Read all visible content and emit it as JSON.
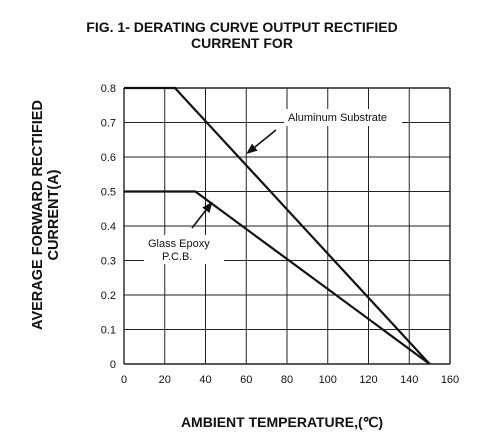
{
  "chart_data": {
    "type": "line",
    "title_line1": "FIG. 1- DERATING CURVE OUTPUT RECTIFIED",
    "title_line2": "CURRENT FOR",
    "ylabel_line1": "AVERAGE FORWARD RECTIFIED",
    "ylabel_line2": "CURRENT(A)",
    "xlabel": "AMBIENT TEMPERATURE,(℃)",
    "xlim": [
      0,
      160
    ],
    "ylim": [
      0,
      0.8
    ],
    "x_ticks": [
      "0",
      "20",
      "40",
      "60",
      "80",
      "100",
      "120",
      "140",
      "160"
    ],
    "y_ticks": [
      "0",
      "0.1",
      "0.2",
      "0.3",
      "0.4",
      "0.5",
      "0.6",
      "0.7",
      "0.8"
    ],
    "grid": true,
    "series": [
      {
        "name": "Aluminum Substrate",
        "x": [
          0,
          25,
          150
        ],
        "y": [
          0.8,
          0.8,
          0
        ]
      },
      {
        "name_line1": "Glass Epoxy",
        "name_line2": "P.C.B.",
        "x": [
          0,
          35,
          150
        ],
        "y": [
          0.5,
          0.5,
          0
        ]
      }
    ]
  }
}
